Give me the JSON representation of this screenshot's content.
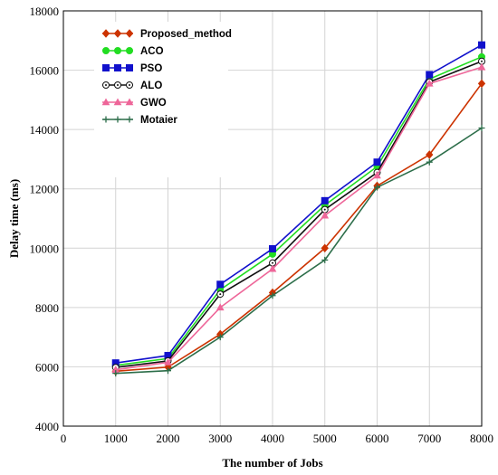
{
  "chart_data": {
    "type": "line",
    "xlabel": "The number of Jobs",
    "ylabel": "Delay time (ms)",
    "xlim": [
      0,
      8000
    ],
    "ylim": [
      4000,
      18000
    ],
    "xticks": [
      0,
      1000,
      2000,
      3000,
      4000,
      5000,
      6000,
      7000,
      8000
    ],
    "yticks": [
      4000,
      6000,
      8000,
      10000,
      12000,
      14000,
      16000,
      18000
    ],
    "grid": true,
    "legend_position": "top-left",
    "x": [
      1000,
      2000,
      3000,
      4000,
      5000,
      6000,
      7000,
      8000
    ],
    "series": [
      {
        "name": "Proposed_method",
        "color": "#cc3300",
        "marker": "diamond",
        "values": [
          5850,
          5990,
          7100,
          8500,
          10000,
          12100,
          13150,
          15550
        ]
      },
      {
        "name": "ACO",
        "color": "#22dd22",
        "marker": "circle",
        "values": [
          6050,
          6280,
          8600,
          9800,
          11450,
          12750,
          15700,
          16450
        ]
      },
      {
        "name": "PSO",
        "color": "#1111cc",
        "marker": "square",
        "values": [
          6130,
          6380,
          8780,
          9980,
          11600,
          12900,
          15850,
          16850
        ]
      },
      {
        "name": "ALO",
        "color": "#111111",
        "marker": "circle-open",
        "values": [
          5980,
          6200,
          8450,
          9500,
          11300,
          12550,
          15600,
          16300
        ]
      },
      {
        "name": "GWO",
        "color": "#ee6699",
        "marker": "triangle",
        "values": [
          5900,
          6150,
          8000,
          9300,
          11100,
          12450,
          15550,
          16100
        ]
      },
      {
        "name": "Motaier",
        "color": "#2d6e4a",
        "marker": "plus",
        "values": [
          5780,
          5870,
          7000,
          8400,
          9600,
          12050,
          12900,
          14050
        ]
      }
    ]
  }
}
